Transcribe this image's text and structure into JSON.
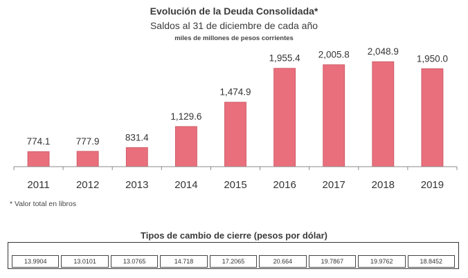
{
  "header": {
    "title": "Evolución de la Deuda Consolidada*",
    "subtitle": "Saldos al 31 de diciembre de cada año",
    "units": "miles de millones de pesos corrientes"
  },
  "chart_data": {
    "type": "bar",
    "title": "Evolución de la Deuda Consolidada*",
    "subtitle": "Saldos al 31 de diciembre de cada año",
    "ylabel": "miles de millones de pesos corrientes",
    "categories": [
      "2011",
      "2012",
      "2013",
      "2014",
      "2015",
      "2016",
      "2017",
      "2018",
      "2019"
    ],
    "values": [
      774.1,
      777.9,
      831.4,
      1129.6,
      1474.9,
      1955.4,
      2005.8,
      2048.9,
      1950.0
    ],
    "value_labels": [
      "774.1",
      "777.9",
      "831.4",
      "1,129.6",
      "1,474.9",
      "1,955.4",
      "2,005.8",
      "2,048.9",
      "1,950.0"
    ],
    "ylim": [
      560,
      2100
    ],
    "grid": false,
    "color": "#e96f7c",
    "edge_color": "#c9525f"
  },
  "footnote": "* Valor total en libros",
  "exchange_rates": {
    "title": "Tipos de cambio de cierre (pesos por dólar)",
    "values": [
      "13.9904",
      "13.0101",
      "13.0765",
      "14.718",
      "17.2065",
      "20.664",
      "19.7867",
      "19.9762",
      "18.8452"
    ]
  }
}
